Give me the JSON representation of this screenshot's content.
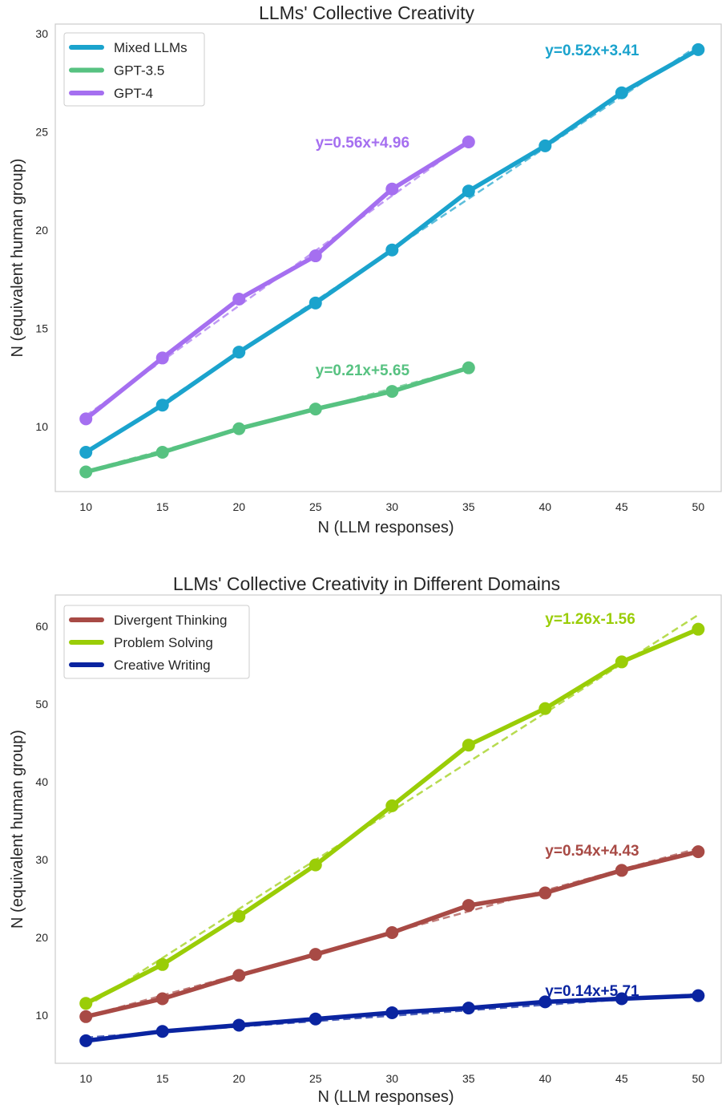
{
  "chart_data": [
    {
      "type": "line",
      "title": "LLMs' Collective Creativity",
      "xlabel": "N (LLM responses)",
      "ylabel": "N (equivalent human group)",
      "xlim": [
        8,
        51.5
      ],
      "ylim": [
        6.7,
        30.5
      ],
      "xticks": [
        10,
        15,
        20,
        25,
        30,
        35,
        40,
        45,
        50
      ],
      "yticks": [
        10,
        15,
        20,
        25,
        30
      ],
      "grid": false,
      "legend_position": "top-left",
      "series": [
        {
          "name": "Mixed LLMs",
          "color": "#1ba3cd",
          "x": [
            10,
            15,
            20,
            25,
            30,
            35,
            40,
            45,
            50
          ],
          "values": [
            8.7,
            11.1,
            13.8,
            16.3,
            19.0,
            22.0,
            24.3,
            27.0,
            29.2
          ],
          "fit": {
            "label": "y=0.52x+3.41",
            "slope": 0.52,
            "intercept": 3.41,
            "label_x": 40,
            "label_y": 29.2,
            "label_anchor": "start"
          }
        },
        {
          "name": "GPT-3.5",
          "color": "#57c281",
          "x": [
            10,
            15,
            20,
            25,
            30,
            35
          ],
          "values": [
            7.7,
            8.7,
            9.9,
            10.9,
            11.8,
            13.0
          ],
          "fit": {
            "label": "y=0.21x+5.65",
            "slope": 0.21,
            "intercept": 5.65,
            "label_x": 25,
            "label_y": 12.9,
            "label_anchor": "start"
          }
        },
        {
          "name": "GPT-4",
          "color": "#a56ff0",
          "x": [
            10,
            15,
            20,
            25,
            30,
            35
          ],
          "values": [
            10.4,
            13.5,
            16.5,
            18.7,
            22.1,
            24.5
          ],
          "fit": {
            "label": "y=0.56x+4.96",
            "slope": 0.56,
            "intercept": 4.96,
            "label_x": 25,
            "label_y": 24.5,
            "label_anchor": "start"
          }
        }
      ]
    },
    {
      "type": "line",
      "title": "LLMs' Collective Creativity in Different Domains",
      "xlabel": "N (LLM responses)",
      "ylabel": "N (equivalent human group)",
      "xlim": [
        8,
        51.5
      ],
      "ylim": [
        3.8,
        64.0
      ],
      "xticks": [
        10,
        15,
        20,
        25,
        30,
        35,
        40,
        45,
        50
      ],
      "yticks": [
        10,
        20,
        30,
        40,
        50,
        60
      ],
      "grid": false,
      "legend_position": "top-left",
      "series": [
        {
          "name": "Divergent Thinking",
          "color": "#a84a45",
          "x": [
            10,
            15,
            20,
            25,
            30,
            35,
            40,
            45,
            50
          ],
          "values": [
            9.8,
            12.1,
            15.1,
            17.8,
            20.6,
            24.1,
            25.7,
            28.6,
            31.0
          ],
          "fit": {
            "label": "y=0.54x+4.43",
            "slope": 0.54,
            "intercept": 4.43,
            "label_x": 40,
            "label_y": 31.2,
            "label_anchor": "start"
          }
        },
        {
          "name": "Problem Solving",
          "color": "#9acd07",
          "x": [
            10,
            15,
            20,
            25,
            30,
            35,
            40,
            45,
            50
          ],
          "values": [
            11.5,
            16.5,
            22.7,
            29.3,
            36.9,
            44.7,
            49.4,
            55.4,
            59.6
          ],
          "fit": {
            "label": "y=1.26x-1.56",
            "slope": 1.26,
            "intercept": -1.56,
            "label_x": 40,
            "label_y": 61.0,
            "label_anchor": "start"
          }
        },
        {
          "name": "Creative Writing",
          "color": "#0a24a0",
          "x": [
            10,
            15,
            20,
            25,
            30,
            35,
            40,
            45,
            50
          ],
          "values": [
            6.7,
            7.9,
            8.7,
            9.5,
            10.3,
            10.9,
            11.7,
            12.1,
            12.5
          ],
          "fit": {
            "label": "y=0.14x+5.71",
            "slope": 0.14,
            "intercept": 5.71,
            "label_x": 40,
            "label_y": 13.2,
            "label_anchor": "start"
          }
        }
      ]
    }
  ]
}
